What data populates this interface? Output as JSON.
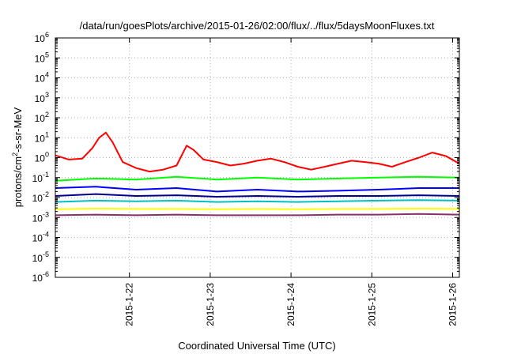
{
  "chart_data": {
    "type": "line",
    "title": "/data/run/goesPlots/archive/2015-01-26/02:00/flux/../flux/5daysMoonFluxes.txt",
    "xlabel": "Coordinated Universal Time (UTC)",
    "ylabel": {
      "base": "protons/cm",
      "sup": "2",
      "rest": "-s-sr-MeV"
    },
    "y_scale": "log",
    "ylim": [
      1e-06,
      1000000.0
    ],
    "y_ticks": [
      {
        "value": 1000000.0,
        "base": "10",
        "exp": "6"
      },
      {
        "value": 100000.0,
        "base": "10",
        "exp": "5"
      },
      {
        "value": 10000.0,
        "base": "10",
        "exp": "4"
      },
      {
        "value": 1000.0,
        "base": "10",
        "exp": "3"
      },
      {
        "value": 100.0,
        "base": "10",
        "exp": "2"
      },
      {
        "value": 10.0,
        "base": "10",
        "exp": "1"
      },
      {
        "value": 1.0,
        "base": "10",
        "exp": "0"
      },
      {
        "value": 0.1,
        "base": "10",
        "exp": "-1"
      },
      {
        "value": 0.01,
        "base": "10",
        "exp": "-2"
      },
      {
        "value": 0.001,
        "base": "10",
        "exp": "-3"
      },
      {
        "value": 0.0001,
        "base": "10",
        "exp": "-4"
      },
      {
        "value": 1e-05,
        "base": "10",
        "exp": "-5"
      },
      {
        "value": 1e-06,
        "base": "10",
        "exp": "-6"
      }
    ],
    "xlim": [
      "2015-01-21T02:00",
      "2015-01-26T02:00"
    ],
    "x_ticks": [
      "2015-1-22",
      "2015-1-23",
      "2015-1-24",
      "2015-1-25",
      "2015-1-26"
    ],
    "grid": true,
    "series": [
      {
        "color": "#ff0000",
        "x": [
          "2015-01-21T02:00",
          "2015-01-21T06:00",
          "2015-01-21T10:00",
          "2015-01-21T13:00",
          "2015-01-21T15:00",
          "2015-01-21T17:00",
          "2015-01-21T19:00",
          "2015-01-21T22:00",
          "2015-01-22T02:00",
          "2015-01-22T06:00",
          "2015-01-22T10:00",
          "2015-01-22T14:00",
          "2015-01-22T17:00",
          "2015-01-22T19:00",
          "2015-01-22T22:00",
          "2015-01-23T02:00",
          "2015-01-23T06:00",
          "2015-01-23T10:00",
          "2015-01-23T14:00",
          "2015-01-23T18:00",
          "2015-01-23T22:00",
          "2015-01-24T02:00",
          "2015-01-24T06:00",
          "2015-01-24T10:00",
          "2015-01-24T14:00",
          "2015-01-24T18:00",
          "2015-01-24T22:00",
          "2015-01-25T02:00",
          "2015-01-25T06:00",
          "2015-01-25T10:00",
          "2015-01-25T14:00",
          "2015-01-25T18:00",
          "2015-01-25T22:00",
          "2015-01-26T02:00"
        ],
        "values": [
          1.3,
          0.8,
          0.9,
          3,
          10,
          18,
          6,
          0.6,
          0.3,
          0.2,
          0.25,
          0.4,
          4,
          2.5,
          0.8,
          0.6,
          0.4,
          0.5,
          0.7,
          0.9,
          0.6,
          0.35,
          0.25,
          0.35,
          0.5,
          0.7,
          0.6,
          0.5,
          0.35,
          0.6,
          1.0,
          1.8,
          1.2,
          0.5
        ]
      },
      {
        "color": "#00ff00",
        "x": [
          "2015-01-21T02:00",
          "2015-01-21T14:00",
          "2015-01-22T02:00",
          "2015-01-22T14:00",
          "2015-01-23T02:00",
          "2015-01-23T14:00",
          "2015-01-24T02:00",
          "2015-01-24T14:00",
          "2015-01-25T02:00",
          "2015-01-25T14:00",
          "2015-01-26T02:00"
        ],
        "values": [
          0.07,
          0.09,
          0.08,
          0.11,
          0.08,
          0.1,
          0.08,
          0.09,
          0.1,
          0.11,
          0.1
        ]
      },
      {
        "color": "#0000ff",
        "x": [
          "2015-01-21T02:00",
          "2015-01-21T14:00",
          "2015-01-22T02:00",
          "2015-01-22T14:00",
          "2015-01-23T02:00",
          "2015-01-23T14:00",
          "2015-01-24T02:00",
          "2015-01-24T14:00",
          "2015-01-25T02:00",
          "2015-01-25T14:00",
          "2015-01-26T02:00"
        ],
        "values": [
          0.03,
          0.035,
          0.025,
          0.03,
          0.02,
          0.025,
          0.02,
          0.022,
          0.025,
          0.03,
          0.03
        ]
      },
      {
        "color": "#00008b",
        "x": [
          "2015-01-21T02:00",
          "2015-01-21T14:00",
          "2015-01-22T02:00",
          "2015-01-22T14:00",
          "2015-01-23T02:00",
          "2015-01-23T14:00",
          "2015-01-24T02:00",
          "2015-01-24T14:00",
          "2015-01-25T02:00",
          "2015-01-25T14:00",
          "2015-01-26T02:00"
        ],
        "values": [
          0.012,
          0.015,
          0.012,
          0.013,
          0.011,
          0.012,
          0.011,
          0.012,
          0.012,
          0.013,
          0.012
        ]
      },
      {
        "color": "#00c0c0",
        "x": [
          "2015-01-21T02:00",
          "2015-01-21T14:00",
          "2015-01-22T02:00",
          "2015-01-22T14:00",
          "2015-01-23T02:00",
          "2015-01-23T14:00",
          "2015-01-24T02:00",
          "2015-01-24T14:00",
          "2015-01-25T02:00",
          "2015-01-25T14:00",
          "2015-01-26T02:00"
        ],
        "values": [
          0.006,
          0.007,
          0.0065,
          0.007,
          0.006,
          0.0065,
          0.006,
          0.0065,
          0.007,
          0.0075,
          0.007
        ]
      },
      {
        "color": "#ffff00",
        "x": [
          "2015-01-21T02:00",
          "2015-01-21T14:00",
          "2015-01-22T02:00",
          "2015-01-22T14:00",
          "2015-01-23T02:00",
          "2015-01-23T14:00",
          "2015-01-24T02:00",
          "2015-01-24T14:00",
          "2015-01-25T02:00",
          "2015-01-25T14:00",
          "2015-01-26T02:00"
        ],
        "values": [
          0.0026,
          0.0028,
          0.0027,
          0.0027,
          0.0026,
          0.0027,
          0.0026,
          0.0027,
          0.0027,
          0.0028,
          0.0027
        ]
      },
      {
        "color": "#8b2f6b",
        "x": [
          "2015-01-21T02:00",
          "2015-01-21T14:00",
          "2015-01-22T02:00",
          "2015-01-22T14:00",
          "2015-01-23T02:00",
          "2015-01-23T14:00",
          "2015-01-24T02:00",
          "2015-01-24T14:00",
          "2015-01-25T02:00",
          "2015-01-25T14:00",
          "2015-01-26T02:00"
        ],
        "values": [
          0.0013,
          0.0014,
          0.0013,
          0.0014,
          0.0013,
          0.0013,
          0.0013,
          0.0014,
          0.0014,
          0.0015,
          0.0014
        ]
      }
    ]
  }
}
